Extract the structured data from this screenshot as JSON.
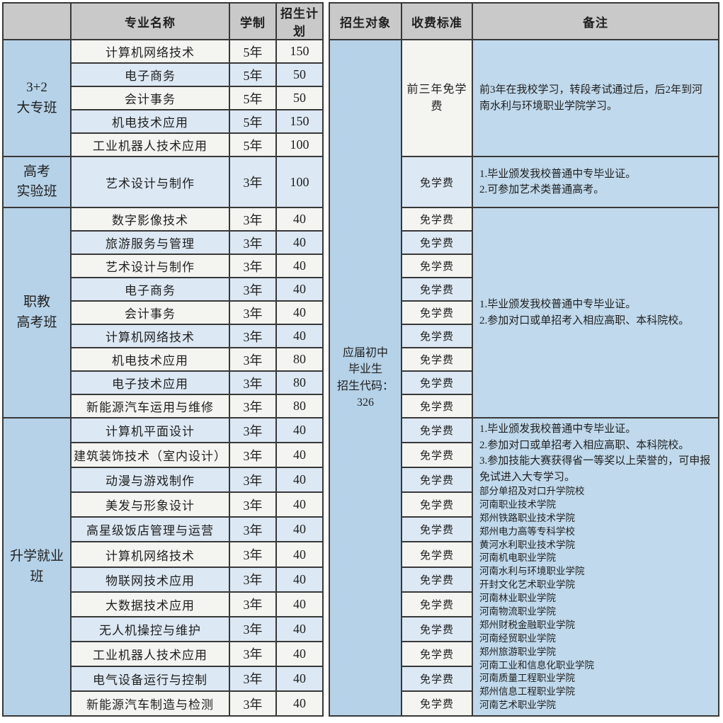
{
  "table": {
    "headers": {
      "group": "",
      "major": "专业名称",
      "years": "学制",
      "plan": "招生计划",
      "target": "招生对象",
      "fee": "收费标准",
      "remark": "备注"
    },
    "target_cell": {
      "lines": [
        "应届初中",
        "毕业生",
        "招生代码：",
        "326"
      ]
    },
    "colors": {
      "header_bg": "#c9c9c9",
      "group_bg": "#b6d2e8",
      "row_white": "#f4f4f1",
      "row_blue": "#dce8f3",
      "remark_bg": "#c0d9ec",
      "border": "#383838"
    },
    "sections": [
      {
        "group_lines": [
          "3+2",
          "大专班"
        ],
        "fee_merged": "前三年免学费",
        "remark_lines": [
          {
            "text": "前3年在我校学习，转段考试通过后，后2年到河南水利与环境职业学院学习。",
            "size": "normal"
          }
        ],
        "rows": [
          {
            "major": "计算机网络技术",
            "years": "5年",
            "plan": "150"
          },
          {
            "major": "电子商务",
            "years": "5年",
            "plan": "50"
          },
          {
            "major": "会计事务",
            "years": "5年",
            "plan": "50"
          },
          {
            "major": "机电技术应用",
            "years": "5年",
            "plan": "150"
          },
          {
            "major": "工业机器人技术应用",
            "years": "5年",
            "plan": "100"
          }
        ]
      },
      {
        "group_lines": [
          "高考",
          "实验班"
        ],
        "remark_lines": [
          {
            "text": "1.毕业颁发我校普通中专毕业证。",
            "size": "normal"
          },
          {
            "text": "2.可参加艺术类普通高考。",
            "size": "normal"
          }
        ],
        "rows": [
          {
            "major": "艺术设计与制作",
            "years": "3年",
            "plan": "100",
            "fee": "免学费",
            "tall": true
          }
        ]
      },
      {
        "group_lines": [
          "职教",
          "高考班"
        ],
        "remark_lines": [
          {
            "text": "1.毕业颁发我校普通中专毕业证。",
            "size": "normal"
          },
          {
            "text": "2.参加对口或单招考入相应高职、本科院校。",
            "size": "normal"
          }
        ],
        "rows": [
          {
            "major": "数字影像技术",
            "years": "3年",
            "plan": "40",
            "fee": "免学费"
          },
          {
            "major": "旅游服务与管理",
            "years": "3年",
            "plan": "40",
            "fee": "免学费"
          },
          {
            "major": "艺术设计与制作",
            "years": "3年",
            "plan": "40",
            "fee": "免学费"
          },
          {
            "major": "电子商务",
            "years": "3年",
            "plan": "40",
            "fee": "免学费"
          },
          {
            "major": "会计事务",
            "years": "3年",
            "plan": "40",
            "fee": "免学费"
          },
          {
            "major": "计算机网络技术",
            "years": "3年",
            "plan": "40",
            "fee": "免学费"
          },
          {
            "major": "机电技术应用",
            "years": "3年",
            "plan": "80",
            "fee": "免学费"
          },
          {
            "major": "电子技术应用",
            "years": "3年",
            "plan": "80",
            "fee": "免学费"
          },
          {
            "major": "新能源汽车运用与维修",
            "years": "3年",
            "plan": "80",
            "fee": "免学费"
          }
        ]
      },
      {
        "group_lines": [
          "升学就业",
          "班"
        ],
        "remark_lines": [
          {
            "text": "1.毕业颁发我校普通中专毕业证。",
            "size": "normal"
          },
          {
            "text": "2.参加对口或单招考入相应高职、本科院校。",
            "size": "normal"
          },
          {
            "text": "3.参加技能大赛获得省一等奖以上荣誉的，可申报免试进入大专学习。",
            "size": "normal"
          },
          {
            "text": "部分单招及对口升学院校",
            "size": "small"
          },
          {
            "text": "河南职业技术学院",
            "size": "small"
          },
          {
            "text": "郑州铁路职业技术学院",
            "size": "small"
          },
          {
            "text": "郑州电力高等专科学校",
            "size": "small"
          },
          {
            "text": "黄河水利职业技术学院",
            "size": "small"
          },
          {
            "text": "河南机电职业学院",
            "size": "small"
          },
          {
            "text": "河南水利与环境职业学院",
            "size": "small"
          },
          {
            "text": "开封文化艺术职业学院",
            "size": "small"
          },
          {
            "text": "河南林业职业学院",
            "size": "small"
          },
          {
            "text": "河南物流职业学院",
            "size": "small"
          },
          {
            "text": "郑州财税金融职业学院",
            "size": "small"
          },
          {
            "text": "河南经贸职业学院",
            "size": "small"
          },
          {
            "text": "郑州旅游职业学院",
            "size": "small"
          },
          {
            "text": "河南工业和信息化职业学院",
            "size": "small"
          },
          {
            "text": "河南质量工程职业学院",
            "size": "small"
          },
          {
            "text": "郑州信息工程职业学院",
            "size": "small"
          },
          {
            "text": "河南艺术职业学院",
            "size": "small"
          }
        ],
        "rows": [
          {
            "major": "计算机平面设计",
            "years": "3年",
            "plan": "40",
            "fee": "免学费"
          },
          {
            "major": "建筑装饰技术（室内设计）",
            "years": "3年",
            "plan": "40",
            "fee": "免学费"
          },
          {
            "major": "动漫与游戏制作",
            "years": "3年",
            "plan": "40",
            "fee": "免学费"
          },
          {
            "major": "美发与形象设计",
            "years": "3年",
            "plan": "40",
            "fee": "免学费"
          },
          {
            "major": "高星级饭店管理与运营",
            "years": "3年",
            "plan": "40",
            "fee": "免学费"
          },
          {
            "major": "计算机网络技术",
            "years": "3年",
            "plan": "40",
            "fee": "免学费"
          },
          {
            "major": "物联网技术应用",
            "years": "3年",
            "plan": "40",
            "fee": "免学费"
          },
          {
            "major": "大数据技术应用",
            "years": "3年",
            "plan": "40",
            "fee": "免学费"
          },
          {
            "major": "无人机操控与维护",
            "years": "3年",
            "plan": "40",
            "fee": "免学费"
          },
          {
            "major": "工业机器人技术应用",
            "years": "3年",
            "plan": "40",
            "fee": "免学费"
          },
          {
            "major": "电气设备运行与控制",
            "years": "3年",
            "plan": "40",
            "fee": "免学费"
          },
          {
            "major": "新能源汽车制造与检测",
            "years": "3年",
            "plan": "40",
            "fee": "免学费"
          }
        ]
      }
    ]
  }
}
